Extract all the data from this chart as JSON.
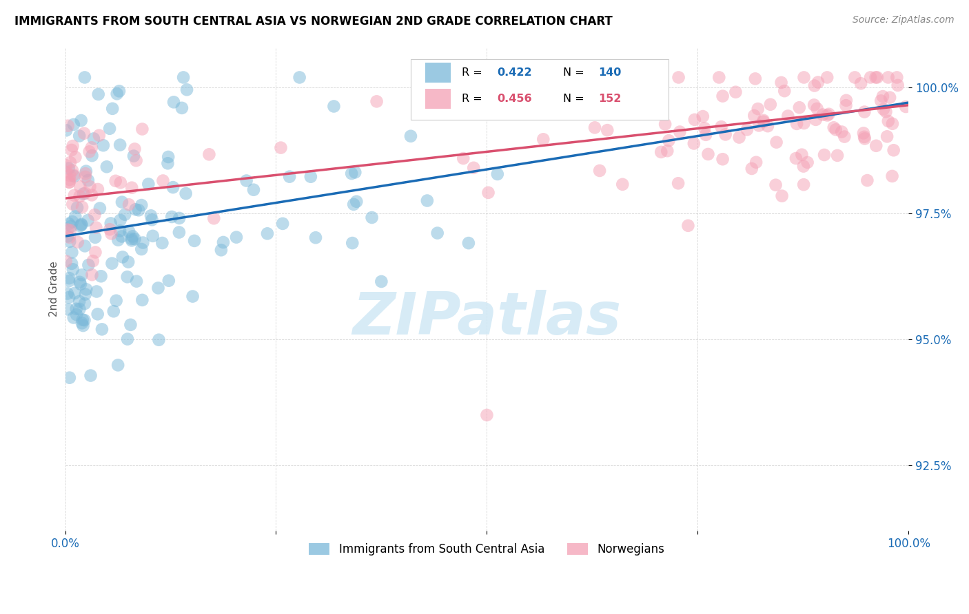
{
  "title": "IMMIGRANTS FROM SOUTH CENTRAL ASIA VS NORWEGIAN 2ND GRADE CORRELATION CHART",
  "source": "Source: ZipAtlas.com",
  "ylabel": "2nd Grade",
  "ytick_labels": [
    "92.5%",
    "95.0%",
    "97.5%",
    "100.0%"
  ],
  "ytick_values": [
    0.925,
    0.95,
    0.975,
    1.0
  ],
  "xlim": [
    0.0,
    1.0
  ],
  "ylim": [
    0.912,
    1.008
  ],
  "legend_blue_r": "0.422",
  "legend_blue_n": "140",
  "legend_pink_r": "0.456",
  "legend_pink_n": "152",
  "legend_label_blue": "Immigrants from South Central Asia",
  "legend_label_pink": "Norwegians",
  "blue_color": "#7ab8d9",
  "pink_color": "#f4a0b5",
  "trendline_blue": "#1a6bb5",
  "trendline_pink": "#d94f6e",
  "text_color_blue": "#1a6bb5",
  "watermark_color": "#d0e8f5"
}
